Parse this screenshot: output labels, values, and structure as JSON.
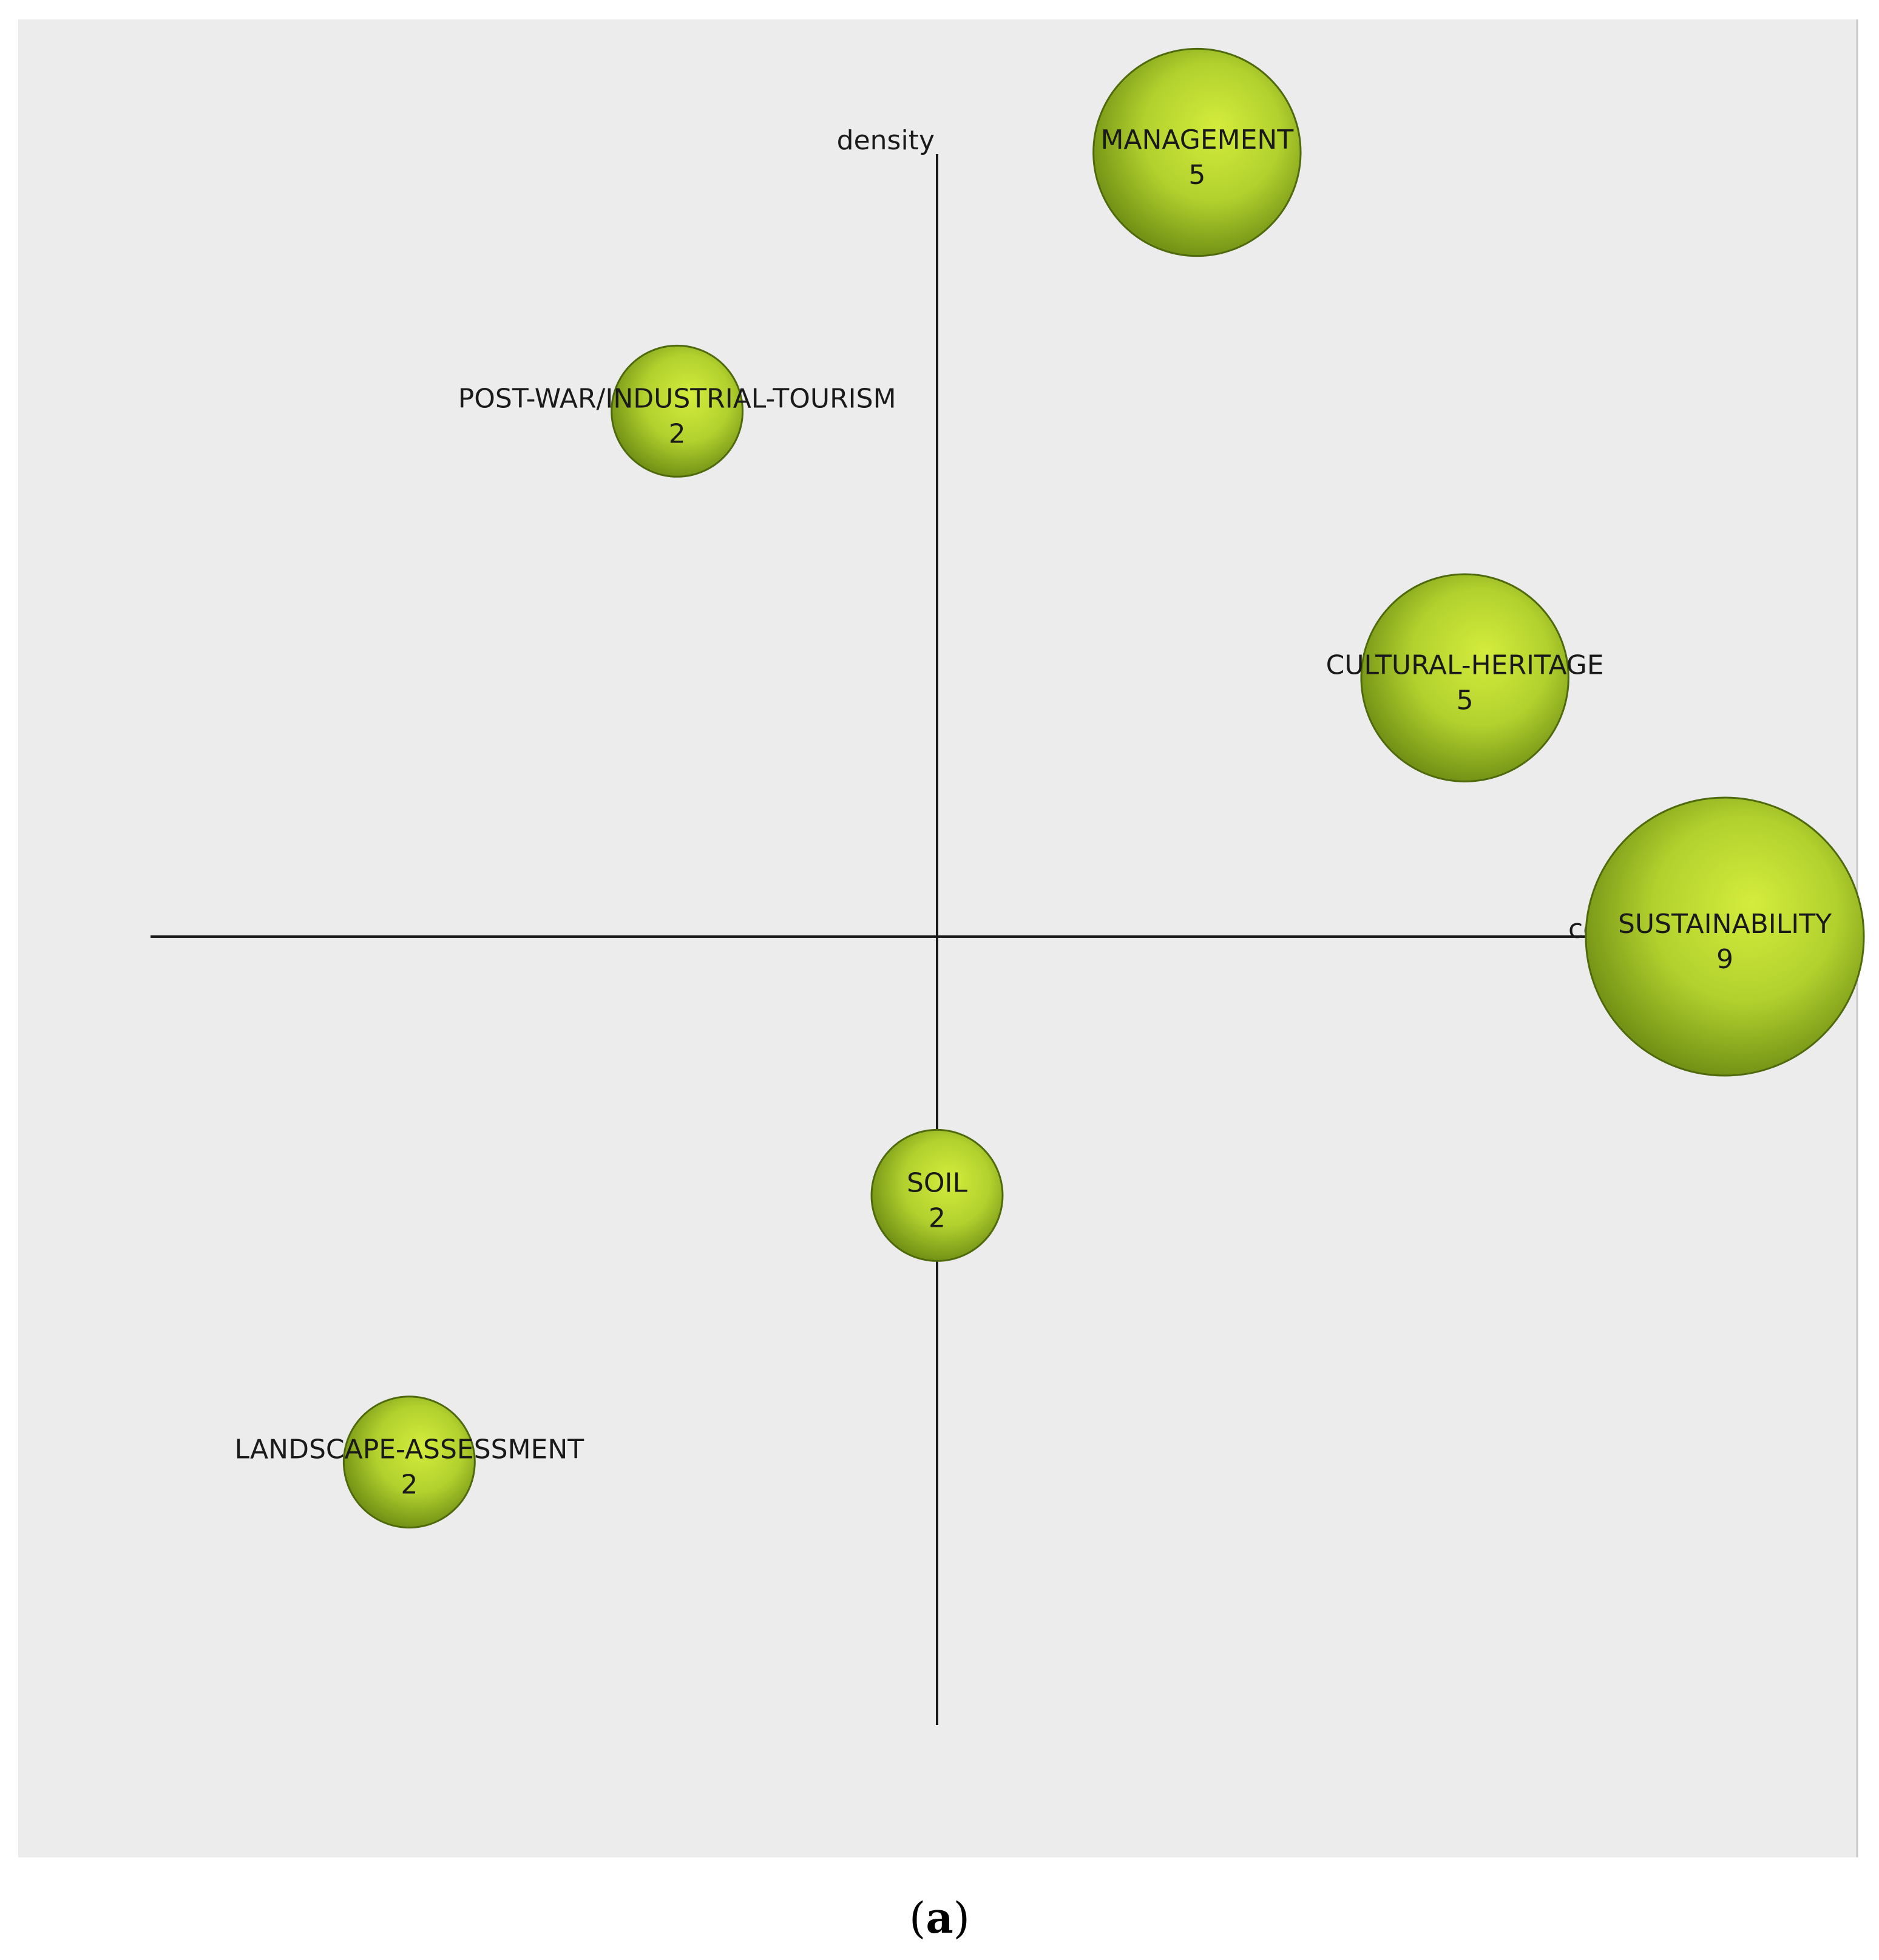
{
  "chart_data": {
    "type": "scatter",
    "subtype": "strategic-diagram-bubble",
    "x_axis_label": "centrality",
    "y_axis_label": "density",
    "xlim": [
      -1,
      1
    ],
    "ylim": [
      -1,
      1
    ],
    "grid": false,
    "colors": {
      "background": "#ececec",
      "bubble_light": "#d4ec3c",
      "bubble_mid": "#a8c82a",
      "bubble_dark": "#6f8e14",
      "axis": "#1a1a1a"
    },
    "points": [
      {
        "label": "MANAGEMENT",
        "count": "5",
        "x": 0.33,
        "y": 1.0
      },
      {
        "label": "POST-WAR/INDUSTRIAL-TOURISM",
        "count": "2",
        "x": -0.33,
        "y": 0.67
      },
      {
        "label": "CULTURAL-HERITAGE",
        "count": "5",
        "x": 0.67,
        "y": 0.33
      },
      {
        "label": "SUSTAINABILITY",
        "count": "9",
        "x": 1.0,
        "y": 0.0
      },
      {
        "label": "SOIL",
        "count": "2",
        "x": 0.0,
        "y": -0.33
      },
      {
        "label": "LANDSCAPE-ASSESSMENT",
        "count": "2",
        "x": -0.67,
        "y": -0.67
      }
    ]
  },
  "caption": {
    "open": "(",
    "letter": "a",
    "close": ")"
  }
}
